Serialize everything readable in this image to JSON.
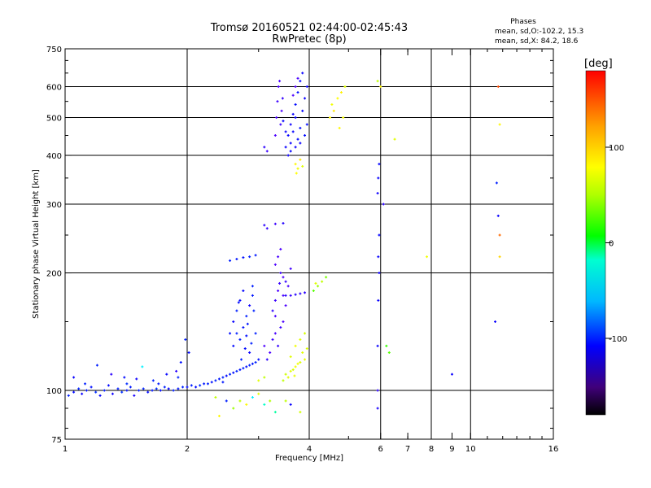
{
  "chart_data": {
    "type": "scatter",
    "title": "Tromsø 20160521 02:44:00-02:45:43",
    "subtitle": "RwPretec (8p)",
    "stats_title": "Phases",
    "stats_lines": [
      "mean, sd,O:-102.2, 15.3",
      "mean, sd,X:  84.2, 18.6"
    ],
    "xlabel": "Frequency [MHz]",
    "ylabel": "Stationary phase Virtual Height [km]",
    "x_scale": "log",
    "y_scale": "log",
    "xlim": [
      1,
      16
    ],
    "ylim": [
      75,
      750
    ],
    "x_ticks": [
      {
        "value": 1,
        "label": "1"
      },
      {
        "value": 2,
        "label": "2"
      },
      {
        "value": 4,
        "label": "4"
      },
      {
        "value": 6,
        "label": "6"
      },
      {
        "value": 7,
        "label": "7"
      },
      {
        "value": 8,
        "label": "8"
      },
      {
        "value": 9,
        "label": "9"
      },
      {
        "value": 10,
        "label": "10"
      },
      {
        "value": 16,
        "label": "16"
      }
    ],
    "x_major_grid": [
      2,
      4,
      6,
      8,
      10
    ],
    "x_minor_ticks": [
      3,
      5,
      7,
      9,
      11,
      12,
      13,
      14,
      15
    ],
    "y_ticks": [
      {
        "value": 75,
        "label": "75"
      },
      {
        "value": 100,
        "label": "100"
      },
      {
        "value": 200,
        "label": "200"
      },
      {
        "value": 300,
        "label": "300"
      },
      {
        "value": 400,
        "label": "400"
      },
      {
        "value": 500,
        "label": "500"
      },
      {
        "value": 600,
        "label": "600"
      },
      {
        "value": 750,
        "label": "750"
      }
    ],
    "y_major_grid": [
      100,
      200,
      300,
      400,
      500,
      600
    ],
    "y_minor_ticks": [
      80,
      90,
      150,
      250,
      350,
      450,
      550,
      650,
      700
    ],
    "grid": true,
    "colorbar": {
      "label": "[deg]",
      "range": [
        -180,
        180
      ],
      "ticks": [
        {
          "value": 100,
          "label": "100"
        },
        {
          "value": 0,
          "label": "0"
        },
        {
          "value": -100,
          "label": "-100"
        }
      ]
    },
    "points": [
      [
        1.02,
        97,
        -100
      ],
      [
        1.05,
        99,
        -105
      ],
      [
        1.08,
        101,
        -98
      ],
      [
        1.1,
        98,
        -110
      ],
      [
        1.13,
        100,
        -102
      ],
      [
        1.16,
        102,
        -104
      ],
      [
        1.19,
        99,
        -96
      ],
      [
        1.22,
        97,
        -108
      ],
      [
        1.25,
        100,
        -100
      ],
      [
        1.28,
        103,
        -106
      ],
      [
        1.31,
        98,
        -112
      ],
      [
        1.35,
        101,
        -100
      ],
      [
        1.38,
        99,
        -95
      ],
      [
        1.42,
        100,
        -104
      ],
      [
        1.45,
        102,
        -102
      ],
      [
        1.48,
        97,
        -115
      ],
      [
        1.52,
        100,
        -100
      ],
      [
        1.56,
        101,
        -98
      ],
      [
        1.6,
        99,
        -106
      ],
      [
        1.64,
        100,
        -102
      ],
      [
        1.68,
        101,
        -96
      ],
      [
        1.72,
        100,
        -104
      ],
      [
        1.76,
        102,
        -100
      ],
      [
        1.8,
        101,
        -108
      ],
      [
        1.85,
        100,
        -100
      ],
      [
        1.9,
        101,
        -102
      ],
      [
        1.95,
        102,
        -98
      ],
      [
        2.0,
        102,
        -104
      ],
      [
        2.05,
        103,
        -100
      ],
      [
        2.1,
        102,
        -106
      ],
      [
        2.15,
        103,
        -96
      ],
      [
        2.2,
        104,
        -102
      ],
      [
        2.25,
        104,
        -100
      ],
      [
        2.3,
        105,
        -104
      ],
      [
        2.35,
        106,
        -98
      ],
      [
        2.4,
        107,
        -102
      ],
      [
        2.45,
        108,
        -100
      ],
      [
        2.5,
        109,
        -106
      ],
      [
        2.55,
        110,
        -100
      ],
      [
        2.6,
        111,
        -104
      ],
      [
        2.65,
        112,
        -98
      ],
      [
        2.7,
        113,
        -102
      ],
      [
        2.75,
        114,
        -100
      ],
      [
        2.8,
        115,
        -104
      ],
      [
        2.85,
        116,
        -100
      ],
      [
        2.9,
        117,
        -102
      ],
      [
        2.95,
        118,
        -98
      ],
      [
        3.0,
        120,
        -104
      ],
      [
        1.05,
        108,
        -110
      ],
      [
        1.2,
        116,
        -100
      ],
      [
        1.3,
        110,
        -120
      ],
      [
        1.4,
        108,
        -105
      ],
      [
        1.5,
        107,
        -112
      ],
      [
        1.55,
        115,
        -40
      ],
      [
        1.65,
        106,
        -100
      ],
      [
        1.78,
        110,
        -108
      ],
      [
        1.88,
        112,
        -120
      ],
      [
        1.93,
        118,
        -104
      ],
      [
        1.98,
        135,
        -100
      ],
      [
        2.02,
        125,
        -106
      ],
      [
        1.9,
        108,
        -98
      ],
      [
        1.7,
        104,
        -102
      ],
      [
        1.12,
        104,
        -100
      ],
      [
        1.42,
        104,
        -96
      ],
      [
        2.45,
        105,
        -102
      ],
      [
        2.6,
        90,
        80
      ],
      [
        2.7,
        94,
        90
      ],
      [
        2.8,
        92,
        110
      ],
      [
        2.9,
        96,
        -40
      ],
      [
        3.0,
        98,
        100
      ],
      [
        3.1,
        92,
        -20
      ],
      [
        3.2,
        94,
        85
      ],
      [
        2.4,
        86,
        110
      ],
      [
        2.5,
        94,
        -100
      ],
      [
        2.35,
        96,
        90
      ],
      [
        3.3,
        88,
        -10
      ],
      [
        3.5,
        94,
        90
      ],
      [
        3.6,
        92,
        -110
      ],
      [
        3.8,
        88,
        95
      ],
      [
        3.0,
        106,
        100
      ],
      [
        3.1,
        108,
        90
      ],
      [
        2.6,
        150,
        -110
      ],
      [
        2.65,
        160,
        -100
      ],
      [
        2.7,
        170,
        -108
      ],
      [
        2.75,
        145,
        -104
      ],
      [
        2.8,
        155,
        -100
      ],
      [
        2.85,
        165,
        -112
      ],
      [
        2.9,
        175,
        -102
      ],
      [
        2.95,
        140,
        -100
      ],
      [
        2.6,
        130,
        -106
      ],
      [
        2.7,
        135,
        -100
      ],
      [
        2.8,
        138,
        -104
      ],
      [
        2.85,
        125,
        -110
      ],
      [
        2.9,
        185,
        -100
      ],
      [
        2.75,
        180,
        -108
      ],
      [
        2.65,
        140,
        -100
      ],
      [
        2.55,
        140,
        -104
      ],
      [
        2.72,
        120,
        -100
      ],
      [
        2.78,
        128,
        -106
      ],
      [
        2.88,
        132,
        -100
      ],
      [
        2.82,
        148,
        -102
      ],
      [
        2.92,
        160,
        -98
      ],
      [
        2.68,
        168,
        -104
      ],
      [
        3.1,
        130,
        -130
      ],
      [
        3.15,
        120,
        -120
      ],
      [
        3.2,
        125,
        -130
      ],
      [
        3.25,
        135,
        -125
      ],
      [
        3.3,
        140,
        -128
      ],
      [
        3.35,
        130,
        -122
      ],
      [
        3.4,
        145,
        -125
      ],
      [
        3.45,
        150,
        -130
      ],
      [
        3.3,
        210,
        -130
      ],
      [
        3.35,
        220,
        -128
      ],
      [
        3.4,
        200,
        -125
      ],
      [
        3.45,
        195,
        -130
      ],
      [
        3.5,
        190,
        -122
      ],
      [
        3.55,
        185,
        -128
      ],
      [
        3.6,
        205,
        -126
      ],
      [
        3.4,
        230,
        -130
      ],
      [
        3.35,
        180,
        -130
      ],
      [
        3.45,
        175,
        -128
      ],
      [
        3.3,
        170,
        -125
      ],
      [
        3.25,
        160,
        -120
      ],
      [
        3.3,
        155,
        -128
      ],
      [
        3.5,
        165,
        -130
      ],
      [
        3.38,
        188,
        -124
      ],
      [
        3.5,
        175,
        -120
      ],
      [
        3.6,
        175,
        -122
      ],
      [
        3.7,
        176,
        -118
      ],
      [
        3.8,
        177,
        -120
      ],
      [
        3.9,
        178,
        -120
      ],
      [
        3.5,
        110,
        95
      ],
      [
        3.6,
        112,
        100
      ],
      [
        3.7,
        115,
        105
      ],
      [
        3.8,
        118,
        98
      ],
      [
        3.9,
        120,
        102
      ],
      [
        3.55,
        108,
        100
      ],
      [
        3.65,
        113,
        96
      ],
      [
        3.75,
        117,
        104
      ],
      [
        3.85,
        125,
        100
      ],
      [
        3.95,
        128,
        98
      ],
      [
        3.45,
        106,
        90
      ],
      [
        3.6,
        122,
        100
      ],
      [
        3.7,
        130,
        105
      ],
      [
        3.8,
        135,
        100
      ],
      [
        3.9,
        140,
        96
      ],
      [
        3.68,
        109,
        102
      ],
      [
        4.1,
        180,
        60
      ],
      [
        4.2,
        185,
        80
      ],
      [
        4.3,
        190,
        90
      ],
      [
        4.4,
        195,
        70
      ],
      [
        4.15,
        188,
        100
      ],
      [
        3.1,
        265,
        -120
      ],
      [
        3.3,
        267,
        -125
      ],
      [
        3.45,
        268,
        -118
      ],
      [
        3.15,
        260,
        -122
      ],
      [
        2.55,
        215,
        -100
      ],
      [
        2.65,
        217,
        -102
      ],
      [
        2.75,
        219,
        -104
      ],
      [
        2.85,
        220,
        -100
      ],
      [
        2.95,
        222,
        -102
      ],
      [
        3.1,
        420,
        -120
      ],
      [
        3.15,
        410,
        -125
      ],
      [
        3.3,
        450,
        -130
      ],
      [
        3.32,
        500,
        -128
      ],
      [
        3.34,
        550,
        -125
      ],
      [
        3.36,
        600,
        -130
      ],
      [
        3.38,
        620,
        -128
      ],
      [
        3.4,
        480,
        -125
      ],
      [
        3.42,
        520,
        -130
      ],
      [
        3.44,
        560,
        -122
      ],
      [
        3.5,
        420,
        -110
      ],
      [
        3.55,
        450,
        -108
      ],
      [
        3.6,
        480,
        -112
      ],
      [
        3.65,
        510,
        -110
      ],
      [
        3.7,
        540,
        -106
      ],
      [
        3.75,
        580,
        -104
      ],
      [
        3.8,
        620,
        -108
      ],
      [
        3.85,
        650,
        -110
      ],
      [
        3.55,
        400,
        -112
      ],
      [
        3.6,
        430,
        -110
      ],
      [
        3.65,
        460,
        -108
      ],
      [
        3.7,
        500,
        -110
      ],
      [
        3.75,
        440,
        -106
      ],
      [
        3.8,
        470,
        -104
      ],
      [
        3.85,
        520,
        -108
      ],
      [
        3.9,
        560,
        -112
      ],
      [
        3.95,
        600,
        -110
      ],
      [
        3.6,
        410,
        -108
      ],
      [
        3.7,
        420,
        -112
      ],
      [
        3.8,
        430,
        -110
      ],
      [
        3.9,
        450,
        -106
      ],
      [
        3.95,
        480,
        -104
      ],
      [
        3.5,
        460,
        -110
      ],
      [
        3.45,
        490,
        -108
      ],
      [
        3.65,
        570,
        -130
      ],
      [
        3.7,
        600,
        -132
      ],
      [
        3.75,
        630,
        -128
      ],
      [
        3.7,
        380,
        110
      ],
      [
        3.75,
        370,
        105
      ],
      [
        3.8,
        390,
        115
      ],
      [
        3.72,
        360,
        108
      ],
      [
        3.85,
        375,
        100
      ],
      [
        4.5,
        500,
        110
      ],
      [
        4.6,
        520,
        115
      ],
      [
        4.7,
        560,
        108
      ],
      [
        4.8,
        580,
        112
      ],
      [
        4.9,
        600,
        100
      ],
      [
        4.55,
        540,
        105
      ],
      [
        4.75,
        470,
        110
      ],
      [
        4.85,
        500,
        106
      ],
      [
        5.9,
        130,
        -110
      ],
      [
        5.9,
        100,
        -120
      ],
      [
        5.9,
        90,
        -115
      ],
      [
        5.92,
        170,
        -110
      ],
      [
        5.95,
        200,
        -112
      ],
      [
        5.92,
        220,
        -110
      ],
      [
        5.95,
        250,
        -108
      ],
      [
        5.9,
        320,
        -112
      ],
      [
        5.92,
        350,
        -110
      ],
      [
        5.95,
        380,
        -108
      ],
      [
        5.9,
        620,
        90
      ],
      [
        6.0,
        600,
        110
      ],
      [
        6.1,
        300,
        -120
      ],
      [
        6.2,
        130,
        50
      ],
      [
        6.3,
        125,
        60
      ],
      [
        6.5,
        440,
        100
      ],
      [
        7.8,
        220,
        105
      ],
      [
        9.0,
        110,
        -110
      ],
      [
        11.5,
        150,
        -110
      ],
      [
        11.6,
        340,
        -100
      ],
      [
        11.7,
        280,
        -110
      ],
      [
        11.8,
        250,
        150
      ],
      [
        11.8,
        220,
        120
      ],
      [
        11.7,
        600,
        160
      ],
      [
        11.8,
        480,
        110
      ]
    ]
  }
}
